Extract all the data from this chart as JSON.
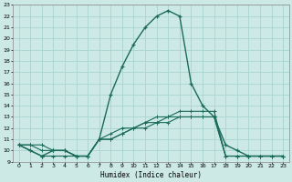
{
  "xlabel": "Humidex (Indice chaleur)",
  "xlim": [
    -0.5,
    23.5
  ],
  "ylim": [
    9,
    23
  ],
  "yticks": [
    9,
    10,
    11,
    12,
    13,
    14,
    15,
    16,
    17,
    18,
    19,
    20,
    21,
    22,
    23
  ],
  "xticks": [
    0,
    1,
    2,
    3,
    4,
    5,
    6,
    7,
    8,
    9,
    10,
    11,
    12,
    13,
    14,
    15,
    16,
    17,
    18,
    19,
    20,
    21,
    22,
    23
  ],
  "bg_color": "#cce9e5",
  "grid_color": "#aad4cf",
  "line_color": "#1a6b5a",
  "main_x": [
    0,
    1,
    2,
    3,
    4,
    5,
    6,
    7,
    8,
    9,
    10,
    11,
    12,
    13,
    14,
    15,
    16,
    17,
    18,
    19,
    20,
    23
  ],
  "main_y": [
    10.5,
    10.0,
    9.5,
    10.0,
    10.0,
    9.5,
    9.5,
    11.0,
    15.0,
    17.5,
    19.5,
    21.0,
    22.0,
    22.5,
    22.0,
    16.0,
    14.0,
    13.0,
    10.5,
    10.0,
    9.5,
    9.5
  ],
  "line2_x": [
    0,
    1,
    2,
    3,
    4,
    5,
    6,
    7,
    8,
    9,
    10,
    11,
    12,
    13,
    14,
    15,
    16,
    17,
    18,
    19,
    20,
    21,
    22,
    23
  ],
  "line2_y": [
    10.5,
    10.0,
    9.5,
    9.5,
    9.5,
    9.5,
    9.5,
    11.0,
    11.0,
    11.5,
    12.0,
    12.0,
    12.5,
    12.5,
    13.0,
    13.0,
    13.0,
    13.0,
    9.5,
    9.5,
    9.5,
    9.5,
    9.5,
    9.5
  ],
  "line3_x": [
    0,
    1,
    2,
    3,
    4,
    5,
    6,
    7,
    8,
    9,
    10,
    11,
    12,
    13,
    14,
    15,
    16,
    17,
    18,
    19,
    20,
    21,
    22,
    23
  ],
  "line3_y": [
    10.5,
    10.5,
    10.0,
    10.0,
    10.0,
    9.5,
    9.5,
    11.0,
    11.5,
    12.0,
    12.0,
    12.5,
    13.0,
    13.0,
    13.5,
    13.5,
    13.5,
    13.5,
    9.5,
    9.5,
    9.5,
    9.5,
    9.5,
    9.5
  ],
  "line4_x": [
    0,
    1,
    2,
    3,
    4,
    5,
    6,
    7,
    8,
    9,
    10,
    11,
    12,
    13,
    14,
    15,
    16,
    17,
    18,
    19,
    20,
    21,
    22,
    23
  ],
  "line4_y": [
    10.5,
    10.5,
    10.5,
    10.0,
    10.0,
    9.5,
    9.5,
    11.0,
    11.0,
    11.5,
    12.0,
    12.5,
    12.5,
    13.0,
    13.0,
    13.0,
    13.0,
    13.0,
    9.5,
    9.5,
    9.5,
    9.5,
    9.5,
    9.5
  ]
}
